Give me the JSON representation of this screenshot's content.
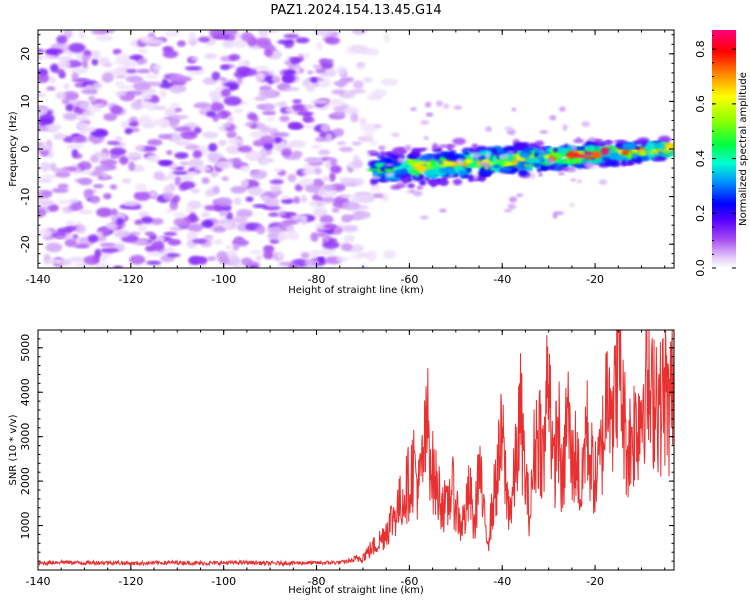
{
  "title": "PAZ1.2024.154.13.45.G14",
  "colors": {
    "snr_line": "#e83030",
    "axis": "#000000",
    "colormap": [
      "#ffffff",
      "#d9b8f5",
      "#a64cf2",
      "#7a1ff0",
      "#3300ff",
      "#0040ff",
      "#00d2ff",
      "#00ff80",
      "#6aff00",
      "#ffff00",
      "#ff8000",
      "#ff0000",
      "#ff007f"
    ]
  },
  "chart_data": [
    {
      "type": "heatmap",
      "xlabel": "Height of straight line (km)",
      "ylabel": "Frequency (Hz)",
      "xlim": [
        -140,
        -3
      ],
      "ylim": [
        -25,
        25
      ],
      "x_ticks": [
        -140,
        -120,
        -100,
        -80,
        -60,
        -40,
        -20
      ],
      "y_ticks": [
        -20,
        -10,
        0,
        10,
        20
      ],
      "colorbar": {
        "label": "Normalized spectral amplitude",
        "range": [
          0,
          0.87
        ],
        "ticks": [
          0.0,
          0.2,
          0.4,
          0.6,
          0.8
        ],
        "tick_labels": [
          "0.0",
          "0.2",
          "0.4",
          "0.6",
          "0.8"
        ]
      },
      "description_regions": [
        {
          "x_range": [
            -140,
            -68
          ],
          "y_range": [
            -25,
            25
          ],
          "amplitude": [
            0.0,
            0.15
          ]
        },
        {
          "x_range": [
            -68,
            -3
          ],
          "y_range": [
            -8,
            3
          ],
          "amplitude": [
            0.1,
            0.87
          ]
        }
      ]
    },
    {
      "type": "line",
      "xlabel": "Height of straight line (km)",
      "ylabel": "SNR (10 * v/v)",
      "xlim": [
        -140,
        -3
      ],
      "ylim": [
        0,
        5400
      ],
      "x_ticks": [
        -140,
        -120,
        -100,
        -80,
        -60,
        -40,
        -20
      ],
      "y_ticks": [
        1000,
        2000,
        3000,
        4000,
        5000
      ],
      "series": [
        {
          "x": [
            -140,
            -135,
            -130,
            -125,
            -120,
            -115,
            -110,
            -105,
            -100,
            -95,
            -90,
            -85,
            -80,
            -75,
            -72,
            -70,
            -68,
            -66,
            -64,
            -62,
            -60,
            -59,
            -58,
            -57,
            -56,
            -55,
            -54,
            -53,
            -52,
            -51,
            -50,
            -49,
            -48,
            -47,
            -46,
            -45,
            -44,
            -43,
            -42,
            -41,
            -40,
            -39,
            -38,
            -37,
            -36,
            -35,
            -34,
            -33,
            -32,
            -31,
            -30,
            -29,
            -28,
            -27,
            -26,
            -25,
            -24,
            -23,
            -22,
            -21,
            -20,
            -19,
            -18,
            -17,
            -16,
            -15,
            -14,
            -13,
            -12,
            -11,
            -10,
            -9,
            -8,
            -7,
            -6,
            -5,
            -4,
            -3
          ],
          "y": [
            150,
            180,
            160,
            170,
            150,
            160,
            170,
            150,
            160,
            170,
            150,
            160,
            160,
            170,
            220,
            300,
            500,
            700,
            1100,
            1500,
            2000,
            2400,
            1800,
            2500,
            3300,
            2200,
            1800,
            1600,
            1300,
            1900,
            1500,
            1000,
            1200,
            1800,
            900,
            2400,
            1200,
            700,
            1500,
            2200,
            3000,
            1600,
            1400,
            2500,
            3500,
            2000,
            1200,
            2800,
            3200,
            2400,
            5100,
            2000,
            3400,
            1700,
            3700,
            2300,
            2700,
            1500,
            3300,
            2500,
            2000,
            2400,
            3200,
            5000,
            3200,
            5350,
            3600,
            2700,
            3100,
            3300,
            3700,
            4600,
            3500,
            4300,
            3600,
            4100,
            3500,
            4600
          ]
        }
      ]
    }
  ]
}
